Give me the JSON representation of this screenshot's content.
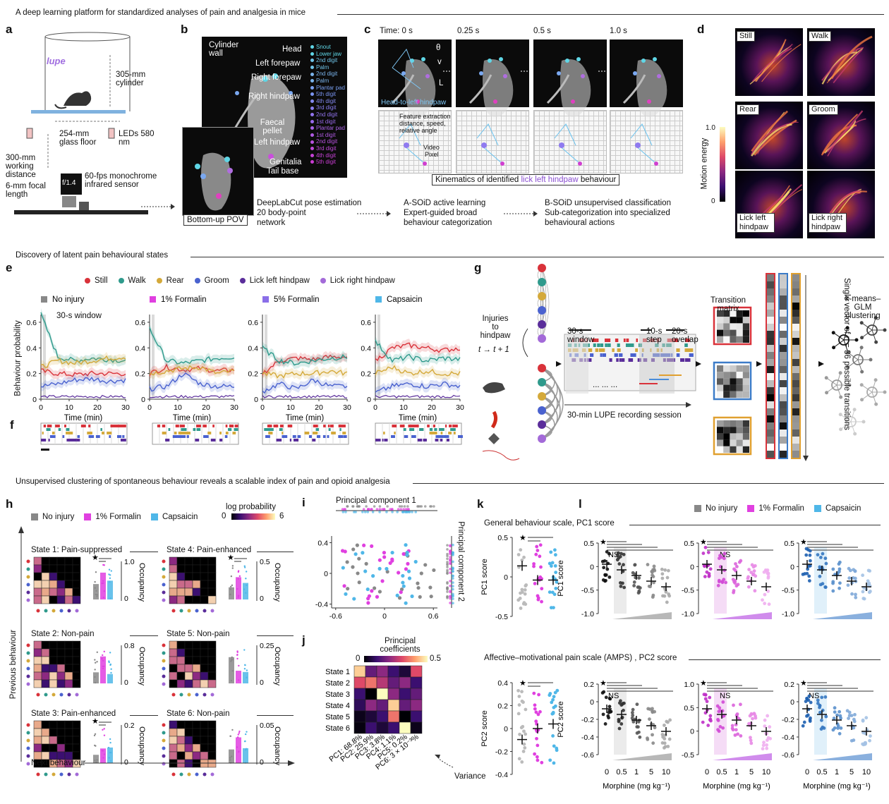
{
  "sections": {
    "top": "A deep learning platform for standardized analyses of pain and analgesia in mice",
    "middle": "Discovery of latent pain behavioural states",
    "bottom": "Unsupervised clustering of spontaneous behaviour reveals a scalable index of pain and opioid analgesia"
  },
  "panel_letters": [
    "a",
    "b",
    "c",
    "d",
    "e",
    "f",
    "g",
    "h",
    "i",
    "j",
    "k",
    "l"
  ],
  "panel_a": {
    "logo": "lupe",
    "cylinder": "305-mm cylinder",
    "floor": "254-mm glass floor",
    "leds": "LEDs 580 nm",
    "working": "300-mm working distance",
    "focal": "6-mm focal length",
    "sensor": "60-fps monochrome infrared sensor",
    "fstop": "f/1.4"
  },
  "panel_b": {
    "cylinder_wall": "Cylinder wall",
    "head": "Head",
    "left_forepaw": "Left forepaw",
    "right_forepaw": "Right forepaw",
    "right_hindpaw": "Right hindpaw",
    "faecal": "Faecal pellet",
    "left_hindpaw": "Left hindpaw",
    "genitalia": "Genitalia",
    "tailbase": "Tail base",
    "bodyparts": [
      "Snout",
      "Lower jaw",
      "2nd digit",
      "Palm",
      "2nd digit",
      "Palm",
      "Plantar pad",
      "5th digit",
      "4th digit",
      "3rd digit",
      "2nd digit",
      "1st digit",
      "Plantar pad",
      "1st digit",
      "2nd digit",
      "3rd digit",
      "4th digit",
      "5th digit"
    ],
    "pov": "Bottom-up POV",
    "desc1": "DeepLabCut pose estimation",
    "desc2": "20 body-point",
    "desc3": "network"
  },
  "panel_c": {
    "times": [
      "Time: 0 s",
      "0.25 s",
      "0.5 s",
      "1.0 s"
    ],
    "theta": "θ",
    "v": "v",
    "L": "L",
    "head_to": "Head-to-left hindpaw",
    "feature": "Feature extraction distance, speed, relative angle",
    "video": "Video",
    "pixel": "Pixel",
    "kinematics_pre": "Kinematics of identified ",
    "kinematics_hl": "lick left hindpaw",
    "kinematics_post": " behaviour",
    "asoid1": "A-SOiD active learning",
    "asoid2": "Expert-guided broad",
    "asoid3": "behaviour categorization",
    "bsoid1": "B-SOiD unsupervised classification",
    "bsoid2": "Sub-categorization into specialized",
    "bsoid3": "behavioural actions"
  },
  "panel_d": {
    "tiles": [
      "Still",
      "Walk",
      "Rear",
      "Groom",
      "Lick left hindpaw",
      "Lick right hindpaw"
    ],
    "scale_label": "Motion energy",
    "scale_max": "1.0",
    "scale_min": "0"
  },
  "panel_e": {
    "legend": [
      {
        "name": "Still",
        "color": "#d9323a"
      },
      {
        "name": "Walk",
        "color": "#2f9a8c"
      },
      {
        "name": "Rear",
        "color": "#d4a93a"
      },
      {
        "name": "Groom",
        "color": "#4a62cf"
      },
      {
        "name": "Lick left hindpaw",
        "color": "#5a2d9a"
      },
      {
        "name": "Lick right hindpaw",
        "color": "#a36ad8"
      }
    ],
    "conditions": [
      {
        "name": "No injury",
        "color": "#888888"
      },
      {
        "name": "1% Formalin",
        "color": "#e040e0"
      },
      {
        "name": "5% Formalin",
        "color": "#8a6ee8"
      },
      {
        "name": "Capsaicin",
        "color": "#4fb7e8"
      }
    ],
    "window_label": "30-s window",
    "ylabel": "Behaviour probability",
    "xlabel": "Time (min)",
    "yticks": [
      "0",
      "0.2",
      "0.4",
      "0.6"
    ],
    "xticks": [
      "0",
      "10",
      "20",
      "30"
    ]
  },
  "panel_g": {
    "injuries": "Injuries to hindpaw",
    "ttrans": "t → t + 1",
    "window": "30-s window",
    "step": "10-s step",
    "overlap": "20-s overlap",
    "session": "30-min LUPE recording session",
    "transition": "Transition matrix",
    "vector": "Single vector of n = 36 possible transitions",
    "kmeans": "k-means–GLM clustering",
    "dots": "... ... ..."
  },
  "panel_h": {
    "legend": [
      {
        "name": "No injury",
        "color": "#888888"
      },
      {
        "name": "1% Formalin",
        "color": "#e040e0"
      },
      {
        "name": "Capsaicin",
        "color": "#4fb7e8"
      }
    ],
    "cbar_label": "log probability",
    "cbar_min": "0",
    "cbar_max": "6",
    "states": [
      {
        "title": "State 1: Pain-suppressed",
        "ymax": "1.0",
        "ymin": "0"
      },
      {
        "title": "State 4: Pain-enhanced",
        "ymax": "0.5",
        "ymin": "0"
      },
      {
        "title": "State 2: Non-pain",
        "ymax": "0.8",
        "ymin": "0"
      },
      {
        "title": "State 5: Non-pain",
        "ymax": "0.25",
        "ymin": "0"
      },
      {
        "title": "State 3: Pain-enhanced",
        "ymax": "0.2",
        "ymin": "0"
      },
      {
        "title": "State 6: Non-pain",
        "ymax": "0.05",
        "ymin": "0"
      }
    ],
    "occupancy": "Occupancy",
    "prev": "Previous behaviour",
    "next": "Next behaviour",
    "star": "★"
  },
  "panel_i": {
    "pc1": "Principal component 1",
    "pc2": "Principal component 2",
    "yticks": [
      "0.4",
      "0",
      "-0.4"
    ],
    "xticks": [
      "-0.6",
      "0",
      "0.6"
    ]
  },
  "panel_j": {
    "title": "Principal coefficients",
    "cbar_min": "0",
    "cbar_max": "0.5",
    "states": [
      "State 1",
      "State 2",
      "State 3",
      "State 4",
      "State 5",
      "State 6"
    ],
    "pcs": [
      "PC1: 68.8%",
      "PC2: 25.9%",
      "PC3: 3.8%",
      "PC4: 1.1%",
      "PC5: 0.2%",
      "PC6: 3 × 10⁻³%"
    ],
    "variance": "Variance"
  },
  "panel_k": {
    "pc1_label": "PC1 score",
    "pc2_label": "PC2 score",
    "pc1_yticks": [
      "0.5",
      "0",
      "-0.5"
    ],
    "pc2_yticks": [
      "0.4",
      "0.2",
      "0",
      "-0.2",
      "-0.4"
    ]
  },
  "panel_l": {
    "legend": [
      {
        "name": "No injury",
        "color": "#888888"
      },
      {
        "name": "1% Formalin",
        "color": "#e040e0"
      },
      {
        "name": "Capsaicin",
        "color": "#4fb7e8"
      }
    ],
    "general": "General behaviour scale, PC1 score",
    "amps": "Affective–motivational pain scale (AMPS) , PC2 score",
    "pc1": "PC1 score",
    "pc2": "PC2 score",
    "pc1_yticks": [
      "0.5",
      "0",
      "-0.5",
      "-1.0"
    ],
    "pc2_yticks": [
      "0.2",
      "0",
      "-0.2",
      "-0.4",
      "-0.6"
    ],
    "pc2_yticks_mid": [
      "1.0",
      "0.5",
      "0",
      "-0.5"
    ],
    "ns": "NS",
    "doses": [
      "0",
      "0.5",
      "1",
      "5",
      "10"
    ],
    "xlabel": "Morphine (mg kg⁻¹)"
  }
}
